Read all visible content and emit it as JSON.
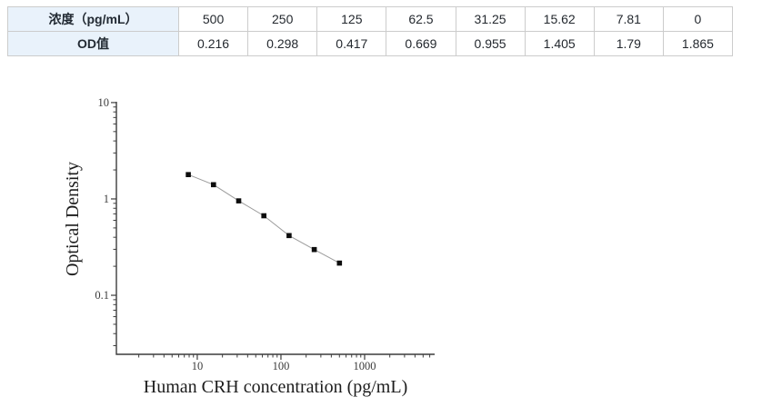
{
  "standards_table": {
    "rows": [
      {
        "header": "浓度（pg/mL）",
        "values": [
          "500",
          "250",
          "125",
          "62.5",
          "31.25",
          "15.62",
          "7.81",
          "0"
        ]
      },
      {
        "header": "OD值",
        "values": [
          "0.216",
          "0.298",
          "0.417",
          "0.669",
          "0.955",
          "1.405",
          "1.79",
          "1.865"
        ]
      }
    ]
  },
  "chart_data": {
    "type": "scatter",
    "title": "",
    "xlabel": "Human CRH concentration (pg/mL)",
    "ylabel": "Optical Density",
    "x_scale": "log",
    "y_scale": "log",
    "x": [
      7.81,
      15.62,
      31.25,
      62.5,
      125,
      250,
      500
    ],
    "y": [
      1.79,
      1.405,
      0.955,
      0.669,
      0.417,
      0.298,
      0.216
    ],
    "x_ticks": [
      10,
      100,
      1000
    ],
    "y_ticks": [
      10,
      1,
      0.1
    ],
    "xlim": [
      1.08,
      6870
    ],
    "ylim": [
      0.0244,
      10.2
    ],
    "grid": false,
    "legend": null,
    "marker": "square",
    "marker_color": "#0d0d0d",
    "line_color": "#9b9b9b",
    "axis_color": "#3c3c3c"
  }
}
